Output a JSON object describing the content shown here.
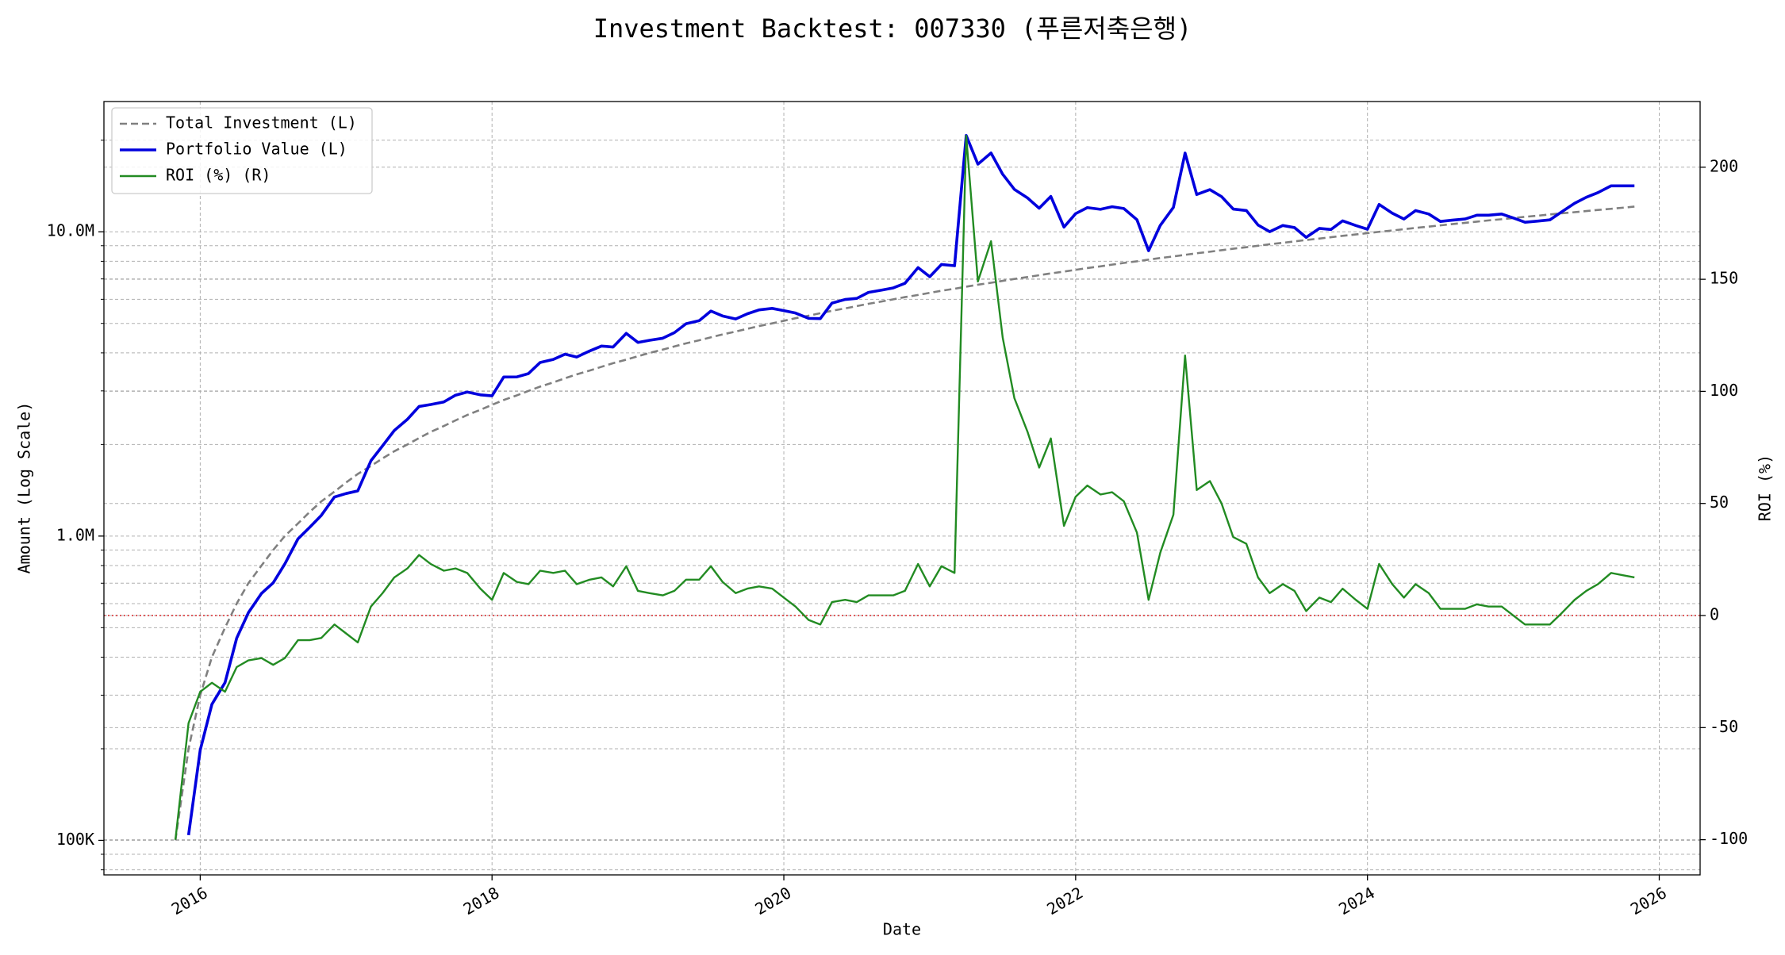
{
  "chart_data": {
    "type": "line",
    "title": "Investment Backtest: 007330 (푸른저축은행)",
    "x_label": "Date",
    "y_label": "Amount (Log Scale)",
    "y2_label": "ROI (%)",
    "y_color": "#1414c8",
    "y2_color": "#228b22",
    "yscale": "log",
    "grid": true,
    "y_minor_grid": true,
    "legend": "upper left",
    "xlim": [
      2015.34,
      2026.28
    ],
    "xticks": [
      2016,
      2018,
      2020,
      2022,
      2024,
      2026
    ],
    "ylim": [
      77000,
      26800000
    ],
    "yticks": [
      {
        "value": 100000,
        "label": "100K"
      },
      {
        "value": 1000000,
        "label": "1.0M"
      },
      {
        "value": 10000000,
        "label": "10.0M"
      }
    ],
    "y2lim": [
      -115.7,
      229.3
    ],
    "y2ticks": [
      -100,
      -50,
      0,
      50,
      100,
      150,
      200
    ],
    "reference_line": {
      "value": 0,
      "axis": "y2",
      "color": "#d62728"
    },
    "x": [
      2015.83,
      2015.92,
      2016,
      2016.08,
      2016.17,
      2016.25,
      2016.33,
      2016.42,
      2016.5,
      2016.58,
      2016.67,
      2016.75,
      2016.83,
      2016.92,
      2017,
      2017.08,
      2017.17,
      2017.25,
      2017.33,
      2017.42,
      2017.5,
      2017.58,
      2017.67,
      2017.75,
      2017.83,
      2017.92,
      2018,
      2018.08,
      2018.17,
      2018.25,
      2018.33,
      2018.42,
      2018.5,
      2018.58,
      2018.67,
      2018.75,
      2018.83,
      2018.92,
      2019,
      2019.08,
      2019.17,
      2019.25,
      2019.33,
      2019.42,
      2019.5,
      2019.58,
      2019.67,
      2019.75,
      2019.83,
      2019.92,
      2020,
      2020.08,
      2020.17,
      2020.25,
      2020.33,
      2020.42,
      2020.5,
      2020.58,
      2020.67,
      2020.75,
      2020.83,
      2020.92,
      2021,
      2021.08,
      2021.17,
      2021.25,
      2021.33,
      2021.42,
      2021.5,
      2021.58,
      2021.67,
      2021.75,
      2021.83,
      2021.92,
      2022,
      2022.08,
      2022.17,
      2022.25,
      2022.33,
      2022.42,
      2022.5,
      2022.58,
      2022.67,
      2022.75,
      2022.83,
      2022.92,
      2023,
      2023.08,
      2023.17,
      2023.25,
      2023.33,
      2023.42,
      2023.5,
      2023.58,
      2023.67,
      2023.75,
      2023.83,
      2023.92,
      2024,
      2024.08,
      2024.17,
      2024.25,
      2024.33,
      2024.42,
      2024.5,
      2024.58,
      2024.67,
      2024.75,
      2024.83,
      2024.92,
      2025,
      2025.08,
      2025.17,
      2025.25,
      2025.33,
      2025.42,
      2025.5,
      2025.58,
      2025.67,
      2025.75,
      2025.83
    ],
    "series": [
      {
        "name": "Total Investment (L)",
        "color": "#808080",
        "dash": true,
        "axis": "y",
        "values": [
          100000,
          200000,
          300000,
          400000,
          500000,
          600000,
          700000,
          800000,
          900000,
          1000000,
          1100000,
          1200000,
          1300000,
          1400000,
          1500000,
          1600000,
          1700000,
          1800000,
          1900000,
          2000000,
          2100000,
          2200000,
          2300000,
          2400000,
          2500000,
          2600000,
          2700000,
          2800000,
          2900000,
          3000000,
          3100000,
          3200000,
          3300000,
          3400000,
          3500000,
          3600000,
          3700000,
          3800000,
          3900000,
          4000000,
          4100000,
          4200000,
          4300000,
          4400000,
          4500000,
          4600000,
          4700000,
          4800000,
          4900000,
          5000000,
          5100000,
          5200000,
          5300000,
          5400000,
          5500000,
          5600000,
          5700000,
          5800000,
          5900000,
          6000000,
          6100000,
          6200000,
          6300000,
          6400000,
          6500000,
          6600000,
          6700000,
          6800000,
          6900000,
          7000000,
          7100000,
          7200000,
          7300000,
          7400000,
          7500000,
          7600000,
          7700000,
          7800000,
          7900000,
          8000000,
          8100000,
          8200000,
          8300000,
          8400000,
          8500000,
          8600000,
          8700000,
          8800000,
          8900000,
          9000000,
          9100000,
          9200000,
          9300000,
          9400000,
          9500000,
          9600000,
          9700000,
          9800000,
          9900000,
          10000000,
          10100000,
          10200000,
          10300000,
          10400000,
          10500000,
          10600000,
          10700000,
          10800000,
          10900000,
          11000000,
          11100000,
          11200000,
          11300000,
          11400000,
          11500000,
          11600000,
          11700000,
          11800000,
          11900000,
          12000000,
          12100000
        ]
      },
      {
        "name": "Portfolio Value (L)",
        "color": "#0000dd",
        "axis": "y",
        "values": [
          null,
          104000,
          198000,
          280000,
          330000,
          462000,
          560000,
          648000,
          702000,
          810000,
          979000,
          1068000,
          1170000,
          1344000,
          1380000,
          1408000,
          1768000,
          1980000,
          2223000,
          2420000,
          2667000,
          2706000,
          2760000,
          2904000,
          2975000,
          2912000,
          2889000,
          3332000,
          3335000,
          3420000,
          3720000,
          3808000,
          3960000,
          3876000,
          4060000,
          4212000,
          4181000,
          4636000,
          4329000,
          4400000,
          4469000,
          4662000,
          4988000,
          5104000,
          5490000,
          5290000,
          5170000,
          5376000,
          5537000,
          5600000,
          5508000,
          5408000,
          5194000,
          5184000,
          5830000,
          5992000,
          6042000,
          6322000,
          6431000,
          6540000,
          6771000,
          7626000,
          7119000,
          7808000,
          7735000,
          20724000,
          16683000,
          18156000,
          15456000,
          13790000,
          12922000,
          11952000,
          13067000,
          10360000,
          11475000,
          12008000,
          11858000,
          12090000,
          11929000,
          10960000,
          8667000,
          10496000,
          12035000,
          18144000,
          13260000,
          13760000,
          13050000,
          11880000,
          11748000,
          10530000,
          10010000,
          10488000,
          10323000,
          9588000,
          10260000,
          10176000,
          10864000,
          10486000,
          10197000,
          12300000,
          11514000,
          11016000,
          11742000,
          11440000,
          10815000,
          10918000,
          11021000,
          11340000,
          11336000,
          11440000,
          11100000,
          10752000,
          10848000,
          10944000,
          11615000,
          12412000,
          12987000,
          13452000,
          14161000,
          14160000,
          14157000
        ]
      },
      {
        "name": "ROI (%) (R)",
        "color": "#228b22",
        "axis": "y2",
        "values": [
          -100,
          -48,
          -34,
          -30,
          -34,
          -23,
          -20,
          -19,
          -22,
          -19,
          -11,
          -11,
          -10,
          -4,
          -8,
          -12,
          4,
          10,
          17,
          21,
          27,
          23,
          20,
          21,
          19,
          12,
          7,
          19,
          15,
          14,
          20,
          19,
          20,
          14,
          16,
          17,
          13,
          22,
          11,
          10,
          9,
          11,
          16,
          16,
          22,
          15,
          10,
          12,
          13,
          12,
          8,
          4,
          -2,
          -4,
          6,
          7,
          6,
          9,
          9,
          9,
          11,
          23,
          13,
          22,
          19,
          214,
          149,
          167,
          124,
          97,
          82,
          66,
          79,
          40,
          53,
          58,
          54,
          55,
          51,
          37,
          7,
          28,
          45,
          116,
          56,
          60,
          50,
          35,
          32,
          17,
          10,
          14,
          11,
          2,
          8,
          6,
          12,
          7,
          3,
          23,
          14,
          8,
          14,
          10,
          3,
          3,
          3,
          5,
          4,
          4,
          0,
          -4,
          -4,
          -4,
          1,
          7,
          11,
          14,
          19,
          18,
          17
        ]
      }
    ]
  }
}
